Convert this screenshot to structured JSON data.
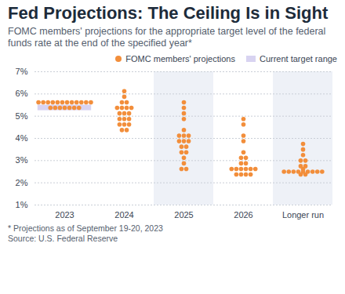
{
  "chart_data": {
    "type": "scatter",
    "title": "Fed Projections: The Ceiling Is in Sight",
    "subtitle": "FOMC members' projections for the appropriate target level of the federal funds rate at the end of the specified year*",
    "categories": [
      "2023",
      "2024",
      "2025",
      "2026",
      "Longer run"
    ],
    "series": [
      {
        "name": "FOMC members' projections",
        "color": "#f28e3b",
        "marker": "circle",
        "values": [
          [
            5.625,
            5.625,
            5.625,
            5.625,
            5.625,
            5.625,
            5.625,
            5.625,
            5.625,
            5.625,
            5.625,
            5.625,
            5.375,
            5.375,
            5.375,
            5.375,
            5.375,
            5.375,
            5.375
          ],
          [
            6.125,
            5.875,
            5.625,
            5.625,
            5.375,
            5.375,
            5.375,
            5.375,
            5.125,
            5.125,
            5.125,
            4.875,
            4.875,
            4.875,
            4.625,
            4.625,
            4.625,
            4.375,
            4.375
          ],
          [
            5.625,
            5.375,
            5.125,
            4.875,
            4.375,
            4.125,
            4.125,
            4.125,
            3.875,
            3.875,
            3.875,
            3.625,
            3.625,
            3.375,
            3.375,
            3.125,
            2.875,
            2.625,
            2.625
          ],
          [
            4.875,
            4.625,
            4.125,
            3.875,
            3.375,
            3.125,
            3.125,
            2.875,
            2.875,
            2.625,
            2.625,
            2.625,
            2.625,
            2.625,
            2.625,
            2.375,
            2.375,
            2.375,
            2.375
          ],
          [
            3.75,
            3.5,
            3.25,
            3.0,
            3.0,
            2.75,
            2.75,
            2.625,
            2.5,
            2.5,
            2.5,
            2.5,
            2.5,
            2.5,
            2.5,
            2.5,
            2.5,
            2.375,
            2.375
          ]
        ]
      }
    ],
    "target_range": {
      "name": "Current target range",
      "category": "2023",
      "color": "#d8d3f1",
      "values": [
        5.25,
        5.5
      ]
    },
    "ylim": [
      1,
      7
    ],
    "yticks": [
      {
        "value": 1,
        "label": "1%"
      },
      {
        "value": 2,
        "label": "2%"
      },
      {
        "value": 3,
        "label": "3%"
      },
      {
        "value": 4,
        "label": "4%"
      },
      {
        "value": 5,
        "label": "5%"
      },
      {
        "value": 6,
        "label": "6%"
      },
      {
        "value": 7,
        "label": "7%"
      }
    ],
    "grid": true,
    "legend": "top-right",
    "notes": [
      "* Projections as of September 19-20, 2023",
      "Source: U.S. Federal Reserve"
    ]
  }
}
